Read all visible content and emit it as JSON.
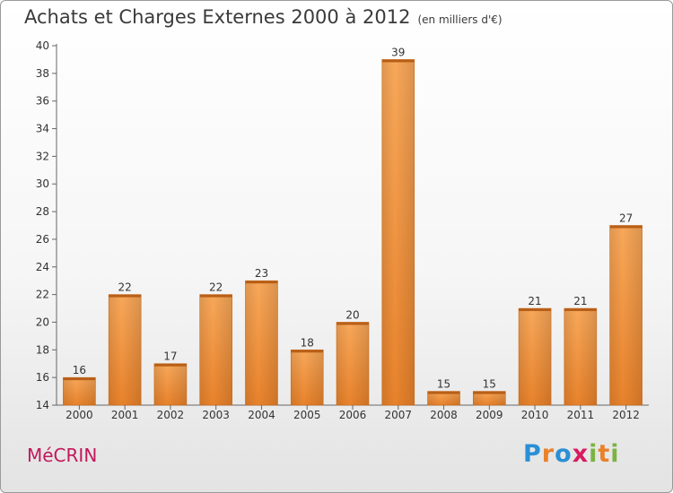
{
  "chart_data": {
    "type": "bar",
    "title": "Achats et Charges Externes 2000 à 2012",
    "subtitle": "(en milliers d'€)",
    "categories": [
      "2000",
      "2001",
      "2002",
      "2003",
      "2004",
      "2005",
      "2006",
      "2007",
      "2008",
      "2009",
      "2010",
      "2011",
      "2012"
    ],
    "values": [
      16,
      22,
      17,
      22,
      23,
      18,
      20,
      39,
      15,
      15,
      21,
      21,
      27
    ],
    "ylim": [
      14,
      40
    ],
    "yticks": [
      14,
      16,
      18,
      20,
      22,
      24,
      26,
      28,
      30,
      32,
      34,
      36,
      38,
      40
    ],
    "grid": false,
    "bar_color": "#e8822b"
  },
  "commune": "MéCRIN",
  "logo": {
    "letters": [
      "P",
      "r",
      "o",
      "x",
      "i",
      "t",
      "i"
    ],
    "colors": [
      "#2a8fd6",
      "#e8822b",
      "#2a8fd6",
      "#d81b60",
      "#7cb342",
      "#e8822b",
      "#7cb342"
    ]
  }
}
